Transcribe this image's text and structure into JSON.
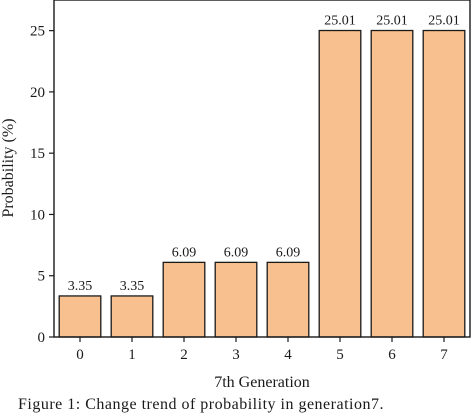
{
  "chart_data": {
    "type": "bar",
    "categories": [
      "0",
      "1",
      "2",
      "3",
      "4",
      "5",
      "6",
      "7"
    ],
    "values": [
      3.35,
      3.35,
      6.09,
      6.09,
      6.09,
      25.01,
      25.01,
      25.01
    ],
    "data_labels": [
      "3.35",
      "3.35",
      "6.09",
      "6.09",
      "6.09",
      "25.01",
      "25.01",
      "25.01"
    ],
    "xlabel": "7th Generation",
    "ylabel": "Probability (%)",
    "ylim": [
      0,
      27.5
    ],
    "yticks": [
      0,
      5,
      10,
      15,
      20,
      25
    ],
    "grid": false,
    "legend": "none",
    "bar_color": "#f9c08f",
    "bar_edge_color": "#1a1a1a"
  },
  "caption": "Figure 1: Change trend of probability in generation7."
}
